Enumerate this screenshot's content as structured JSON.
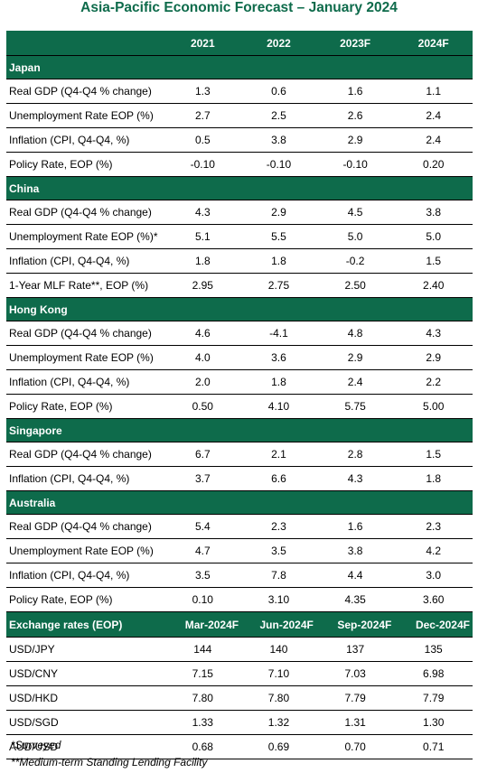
{
  "title": "Asia-Pacific Economic Forecast – January 2024",
  "columns": [
    "2021",
    "2022",
    "2023F",
    "2024F"
  ],
  "sections": [
    {
      "name": "Japan",
      "rows": [
        {
          "label": "Real GDP (Q4-Q4 % change)",
          "values": [
            "1.3",
            "0.6",
            "1.6",
            "1.1"
          ]
        },
        {
          "label": "Unemployment Rate EOP (%)",
          "values": [
            "2.7",
            "2.5",
            "2.6",
            "2.4"
          ]
        },
        {
          "label": "Inflation (CPI, Q4-Q4, %)",
          "values": [
            "0.5",
            "3.8",
            "2.9",
            "2.4"
          ]
        },
        {
          "label": "Policy Rate, EOP (%)",
          "values": [
            "-0.10",
            "-0.10",
            "-0.10",
            "0.20"
          ]
        }
      ]
    },
    {
      "name": "China",
      "rows": [
        {
          "label": "Real GDP (Q4-Q4 % change)",
          "values": [
            "4.3",
            "2.9",
            "4.5",
            "3.8"
          ]
        },
        {
          "label": "Unemployment Rate EOP (%)*",
          "values": [
            "5.1",
            "5.5",
            "5.0",
            "5.0"
          ]
        },
        {
          "label": "Inflation (CPI, Q4-Q4, %)",
          "values": [
            "1.8",
            "1.8",
            "-0.2",
            "1.5"
          ]
        },
        {
          "label": "1-Year MLF Rate**, EOP (%)",
          "values": [
            "2.95",
            "2.75",
            "2.50",
            "2.40"
          ]
        }
      ]
    },
    {
      "name": "Hong Kong",
      "rows": [
        {
          "label": "Real GDP (Q4-Q4 % change)",
          "values": [
            "4.6",
            "-4.1",
            "4.8",
            "4.3"
          ]
        },
        {
          "label": "Unemployment Rate EOP (%)",
          "values": [
            "4.0",
            "3.6",
            "2.9",
            "2.9"
          ]
        },
        {
          "label": "Inflation (CPI, Q4-Q4, %)",
          "values": [
            "2.0",
            "1.8",
            "2.4",
            "2.2"
          ]
        },
        {
          "label": "Policy Rate, EOP (%)",
          "values": [
            "0.50",
            "4.10",
            "5.75",
            "5.00"
          ]
        }
      ]
    },
    {
      "name": "Singapore",
      "rows": [
        {
          "label": "Real GDP (Q4-Q4 % change)",
          "values": [
            "6.7",
            "2.1",
            "2.8",
            "1.5"
          ]
        },
        {
          "label": "Inflation (CPI, Q4-Q4, %)",
          "values": [
            "3.7",
            "6.6",
            "4.3",
            "1.8"
          ]
        }
      ]
    },
    {
      "name": "Australia",
      "rows": [
        {
          "label": "Real GDP (Q4-Q4 % change)",
          "values": [
            "5.4",
            "2.3",
            "1.6",
            "2.3"
          ]
        },
        {
          "label": "Unemployment Rate EOP (%)",
          "values": [
            "4.7",
            "3.5",
            "3.8",
            "4.2"
          ]
        },
        {
          "label": "Inflation (CPI, Q4-Q4, %)",
          "values": [
            "3.5",
            "7.8",
            "4.4",
            "3.0"
          ]
        },
        {
          "label": "Policy Rate, EOP (%)",
          "values": [
            "0.10",
            "3.10",
            "4.35",
            "3.60"
          ]
        }
      ]
    }
  ],
  "fx": {
    "header": "Exchange rates (EOP)",
    "columns": [
      "Mar-2024F",
      "Jun-2024F",
      "Sep-2024F",
      "Dec-2024F"
    ],
    "rows": [
      {
        "label": "USD/JPY",
        "values": [
          "144",
          "140",
          "137",
          "135"
        ]
      },
      {
        "label": "USD/CNY",
        "values": [
          "7.15",
          "7.10",
          "7.03",
          "6.98"
        ]
      },
      {
        "label": "USD/HKD",
        "values": [
          "7.80",
          "7.80",
          "7.79",
          "7.79"
        ]
      },
      {
        "label": "USD/SGD",
        "values": [
          "1.33",
          "1.32",
          "1.31",
          "1.30"
        ]
      },
      {
        "label": "AUD/USD",
        "values": [
          "0.68",
          "0.69",
          "0.70",
          "0.71"
        ]
      }
    ]
  },
  "notes": [
    "*Surveyed",
    "**Medium-term Standing Lending Facility"
  ]
}
